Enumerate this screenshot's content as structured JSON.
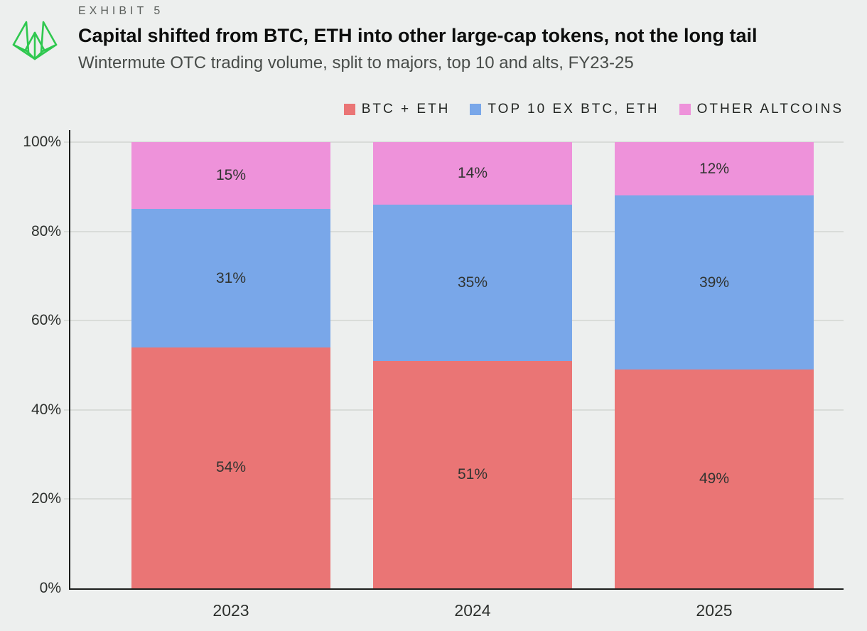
{
  "header": {
    "exhibit_label": "EXHIBIT 5",
    "title": "Capital shifted from BTC, ETH into other large-cap tokens, not the long tail",
    "subtitle": "Wintermute OTC trading volume, split to majors, top 10 and alts, FY23-25",
    "logo_color": "#2fc84f"
  },
  "chart_data": {
    "type": "bar",
    "stacked": true,
    "unit": "percent",
    "categories": [
      "2023",
      "2024",
      "2025"
    ],
    "series": [
      {
        "name": "BTC + ETH",
        "color": "#ea7575",
        "values": [
          54,
          51,
          49
        ],
        "labels": [
          "54%",
          "51%",
          "49%"
        ]
      },
      {
        "name": "TOP 10 EX BTC, ETH",
        "color": "#79a7e9",
        "values": [
          31,
          35,
          39
        ],
        "labels": [
          "31%",
          "35%",
          "39%"
        ]
      },
      {
        "name": "OTHER ALTCOINS",
        "color": "#ee92da",
        "values": [
          15,
          14,
          12
        ],
        "labels": [
          "15%",
          "14%",
          "12%"
        ]
      }
    ],
    "y_axis": {
      "tick_values": [
        0,
        20,
        40,
        60,
        80,
        100
      ],
      "tick_labels": [
        "0%",
        "20%",
        "40%",
        "60%",
        "80%",
        "100%"
      ],
      "min": 0,
      "max": 100,
      "grid": true
    },
    "legend_position": "top-right"
  },
  "colors": {
    "background": "#edefee",
    "grid": "#d9dcd9",
    "axis": "#1c1e1c",
    "segment_label": "#313431"
  }
}
